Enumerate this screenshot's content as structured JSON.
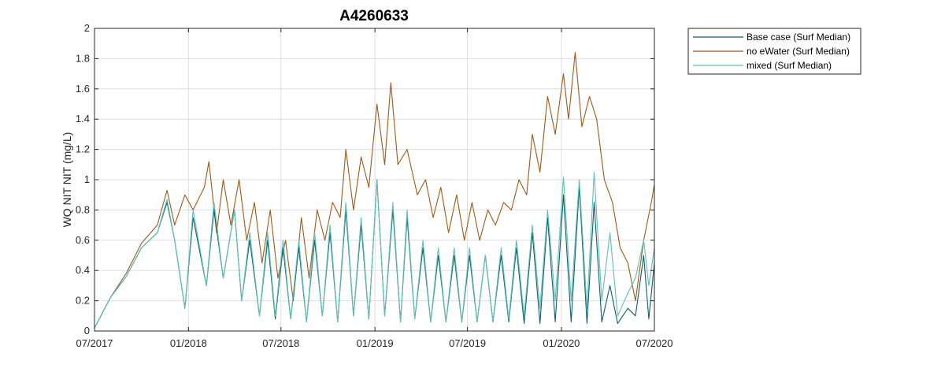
{
  "chart_data": {
    "type": "line",
    "title": "A4260633",
    "xlabel": "",
    "ylabel": "WQ NIT NIT (mg/L)",
    "ylim": [
      0,
      2
    ],
    "yticks": [
      "0",
      "0.2",
      "0.4",
      "0.6",
      "0.8",
      "1",
      "1.2",
      "1.4",
      "1.6",
      "1.8",
      "2"
    ],
    "xlim": [
      "2017-07-01",
      "2020-07-01"
    ],
    "xticks": [
      {
        "date": "2017-07-01",
        "label": "07/2017"
      },
      {
        "date": "2018-01-01",
        "label": "01/2018"
      },
      {
        "date": "2018-07-01",
        "label": "07/2018"
      },
      {
        "date": "2019-01-01",
        "label": "01/2019"
      },
      {
        "date": "2019-07-01",
        "label": "07/2019"
      },
      {
        "date": "2020-01-01",
        "label": "01/2020"
      },
      {
        "date": "2020-07-01",
        "label": "07/2020"
      }
    ],
    "grid": true,
    "legend_position": "outside-top-right",
    "series": [
      {
        "name": "Base case (Surf Median)",
        "color": "#0e5e6b",
        "points": [
          [
            "2017-07-01",
            0.02
          ],
          [
            "2017-08-01",
            0.22
          ],
          [
            "2017-09-01",
            0.36
          ],
          [
            "2017-10-01",
            0.55
          ],
          [
            "2017-11-01",
            0.65
          ],
          [
            "2017-11-20",
            0.85
          ],
          [
            "2017-12-05",
            0.6
          ],
          [
            "2017-12-25",
            0.15
          ],
          [
            "2018-01-10",
            0.75
          ],
          [
            "2018-02-05",
            0.3
          ],
          [
            "2018-02-20",
            0.8
          ],
          [
            "2018-03-10",
            0.35
          ],
          [
            "2018-04-01",
            0.8
          ],
          [
            "2018-04-15",
            0.2
          ],
          [
            "2018-05-01",
            0.6
          ],
          [
            "2018-05-20",
            0.1
          ],
          [
            "2018-06-05",
            0.6
          ],
          [
            "2018-06-20",
            0.08
          ],
          [
            "2018-07-05",
            0.55
          ],
          [
            "2018-07-20",
            0.08
          ],
          [
            "2018-08-05",
            0.55
          ],
          [
            "2018-08-20",
            0.06
          ],
          [
            "2018-09-05",
            0.6
          ],
          [
            "2018-09-20",
            0.1
          ],
          [
            "2018-10-05",
            0.65
          ],
          [
            "2018-10-20",
            0.06
          ],
          [
            "2018-11-05",
            0.8
          ],
          [
            "2018-11-20",
            0.1
          ],
          [
            "2018-12-05",
            0.7
          ],
          [
            "2018-12-20",
            0.08
          ],
          [
            "2019-01-05",
            1.0
          ],
          [
            "2019-01-20",
            0.1
          ],
          [
            "2019-02-05",
            0.8
          ],
          [
            "2019-02-20",
            0.06
          ],
          [
            "2019-03-05",
            0.75
          ],
          [
            "2019-03-20",
            0.08
          ],
          [
            "2019-04-05",
            0.55
          ],
          [
            "2019-04-20",
            0.06
          ],
          [
            "2019-05-05",
            0.5
          ],
          [
            "2019-05-20",
            0.06
          ],
          [
            "2019-06-05",
            0.5
          ],
          [
            "2019-06-20",
            0.06
          ],
          [
            "2019-07-05",
            0.5
          ],
          [
            "2019-07-20",
            0.06
          ],
          [
            "2019-08-05",
            0.5
          ],
          [
            "2019-08-20",
            0.06
          ],
          [
            "2019-09-05",
            0.5
          ],
          [
            "2019-09-20",
            0.06
          ],
          [
            "2019-10-05",
            0.55
          ],
          [
            "2019-10-20",
            0.05
          ],
          [
            "2019-11-05",
            0.65
          ],
          [
            "2019-11-20",
            0.05
          ],
          [
            "2019-12-05",
            0.75
          ],
          [
            "2019-12-20",
            0.06
          ],
          [
            "2020-01-05",
            0.9
          ],
          [
            "2020-01-20",
            0.06
          ],
          [
            "2020-02-05",
            0.95
          ],
          [
            "2020-02-20",
            0.05
          ],
          [
            "2020-03-05",
            0.85
          ],
          [
            "2020-03-20",
            0.06
          ],
          [
            "2020-04-05",
            0.3
          ],
          [
            "2020-04-20",
            0.05
          ],
          [
            "2020-05-10",
            0.15
          ],
          [
            "2020-05-25",
            0.1
          ],
          [
            "2020-06-10",
            0.5
          ],
          [
            "2020-06-20",
            0.08
          ],
          [
            "2020-07-01",
            0.45
          ]
        ]
      },
      {
        "name": "no eWater (Surf Median)",
        "color": "#9a5a1a",
        "points": [
          [
            "2017-07-01",
            0.02
          ],
          [
            "2017-08-01",
            0.22
          ],
          [
            "2017-09-01",
            0.38
          ],
          [
            "2017-10-01",
            0.58
          ],
          [
            "2017-11-01",
            0.7
          ],
          [
            "2017-11-20",
            0.93
          ],
          [
            "2017-12-05",
            0.7
          ],
          [
            "2017-12-25",
            0.9
          ],
          [
            "2018-01-10",
            0.8
          ],
          [
            "2018-02-01",
            0.95
          ],
          [
            "2018-02-10",
            1.12
          ],
          [
            "2018-02-25",
            0.65
          ],
          [
            "2018-03-10",
            1.0
          ],
          [
            "2018-03-25",
            0.7
          ],
          [
            "2018-04-10",
            1.0
          ],
          [
            "2018-04-25",
            0.6
          ],
          [
            "2018-05-10",
            0.85
          ],
          [
            "2018-05-25",
            0.45
          ],
          [
            "2018-06-10",
            0.8
          ],
          [
            "2018-06-25",
            0.35
          ],
          [
            "2018-07-10",
            0.6
          ],
          [
            "2018-07-25",
            0.2
          ],
          [
            "2018-08-10",
            0.75
          ],
          [
            "2018-08-25",
            0.35
          ],
          [
            "2018-09-10",
            0.8
          ],
          [
            "2018-09-25",
            0.6
          ],
          [
            "2018-10-10",
            0.85
          ],
          [
            "2018-10-25",
            0.75
          ],
          [
            "2018-11-05",
            1.2
          ],
          [
            "2018-11-20",
            0.8
          ],
          [
            "2018-12-05",
            1.15
          ],
          [
            "2018-12-20",
            0.95
          ],
          [
            "2019-01-05",
            1.5
          ],
          [
            "2019-01-20",
            1.1
          ],
          [
            "2019-02-01",
            1.64
          ],
          [
            "2019-02-15",
            1.1
          ],
          [
            "2019-03-05",
            1.2
          ],
          [
            "2019-03-25",
            0.9
          ],
          [
            "2019-04-10",
            1.0
          ],
          [
            "2019-04-25",
            0.75
          ],
          [
            "2019-05-10",
            0.95
          ],
          [
            "2019-05-25",
            0.65
          ],
          [
            "2019-06-10",
            0.9
          ],
          [
            "2019-06-25",
            0.6
          ],
          [
            "2019-07-10",
            0.85
          ],
          [
            "2019-07-25",
            0.6
          ],
          [
            "2019-08-10",
            0.8
          ],
          [
            "2019-08-25",
            0.7
          ],
          [
            "2019-09-10",
            0.85
          ],
          [
            "2019-09-25",
            0.8
          ],
          [
            "2019-10-10",
            1.0
          ],
          [
            "2019-10-25",
            0.9
          ],
          [
            "2019-11-05",
            1.3
          ],
          [
            "2019-11-20",
            1.05
          ],
          [
            "2019-12-05",
            1.55
          ],
          [
            "2019-12-20",
            1.3
          ],
          [
            "2020-01-05",
            1.7
          ],
          [
            "2020-01-15",
            1.4
          ],
          [
            "2020-01-28",
            1.84
          ],
          [
            "2020-02-10",
            1.35
          ],
          [
            "2020-02-25",
            1.55
          ],
          [
            "2020-03-10",
            1.4
          ],
          [
            "2020-03-25",
            1.0
          ],
          [
            "2020-04-10",
            0.85
          ],
          [
            "2020-04-25",
            0.55
          ],
          [
            "2020-05-10",
            0.45
          ],
          [
            "2020-05-25",
            0.2
          ],
          [
            "2020-06-10",
            0.6
          ],
          [
            "2020-06-25",
            0.85
          ],
          [
            "2020-07-01",
            0.97
          ]
        ]
      },
      {
        "name": "mixed (Surf Median)",
        "color": "#5fbfb9",
        "points": [
          [
            "2017-07-01",
            0.02
          ],
          [
            "2017-08-01",
            0.22
          ],
          [
            "2017-09-01",
            0.36
          ],
          [
            "2017-10-01",
            0.55
          ],
          [
            "2017-11-01",
            0.65
          ],
          [
            "2017-11-20",
            0.87
          ],
          [
            "2017-12-05",
            0.6
          ],
          [
            "2017-12-25",
            0.15
          ],
          [
            "2018-01-10",
            0.8
          ],
          [
            "2018-02-05",
            0.3
          ],
          [
            "2018-02-20",
            0.85
          ],
          [
            "2018-03-10",
            0.35
          ],
          [
            "2018-04-01",
            0.8
          ],
          [
            "2018-04-15",
            0.2
          ],
          [
            "2018-05-01",
            0.65
          ],
          [
            "2018-05-20",
            0.1
          ],
          [
            "2018-06-05",
            0.65
          ],
          [
            "2018-06-20",
            0.1
          ],
          [
            "2018-07-05",
            0.6
          ],
          [
            "2018-07-20",
            0.08
          ],
          [
            "2018-08-05",
            0.6
          ],
          [
            "2018-08-20",
            0.06
          ],
          [
            "2018-09-05",
            0.65
          ],
          [
            "2018-09-20",
            0.1
          ],
          [
            "2018-10-05",
            0.7
          ],
          [
            "2018-10-20",
            0.06
          ],
          [
            "2018-11-05",
            0.85
          ],
          [
            "2018-11-20",
            0.1
          ],
          [
            "2018-12-05",
            0.75
          ],
          [
            "2018-12-20",
            0.08
          ],
          [
            "2019-01-05",
            1.0
          ],
          [
            "2019-01-20",
            0.1
          ],
          [
            "2019-02-05",
            0.85
          ],
          [
            "2019-02-20",
            0.06
          ],
          [
            "2019-03-05",
            0.8
          ],
          [
            "2019-03-20",
            0.08
          ],
          [
            "2019-04-05",
            0.6
          ],
          [
            "2019-04-20",
            0.06
          ],
          [
            "2019-05-05",
            0.55
          ],
          [
            "2019-05-20",
            0.06
          ],
          [
            "2019-06-05",
            0.55
          ],
          [
            "2019-06-20",
            0.06
          ],
          [
            "2019-07-05",
            0.55
          ],
          [
            "2019-07-20",
            0.06
          ],
          [
            "2019-08-05",
            0.5
          ],
          [
            "2019-08-20",
            0.06
          ],
          [
            "2019-09-05",
            0.55
          ],
          [
            "2019-09-20",
            0.08
          ],
          [
            "2019-10-05",
            0.6
          ],
          [
            "2019-10-20",
            0.1
          ],
          [
            "2019-11-05",
            0.7
          ],
          [
            "2019-11-20",
            0.15
          ],
          [
            "2019-12-05",
            0.8
          ],
          [
            "2019-12-20",
            0.2
          ],
          [
            "2020-01-05",
            1.02
          ],
          [
            "2020-01-20",
            0.2
          ],
          [
            "2020-02-05",
            1.0
          ],
          [
            "2020-02-20",
            0.15
          ],
          [
            "2020-03-05",
            1.05
          ],
          [
            "2020-03-20",
            0.2
          ],
          [
            "2020-04-05",
            0.65
          ],
          [
            "2020-04-20",
            0.1
          ],
          [
            "2020-05-10",
            0.25
          ],
          [
            "2020-05-25",
            0.35
          ],
          [
            "2020-06-10",
            0.6
          ],
          [
            "2020-06-20",
            0.3
          ],
          [
            "2020-07-01",
            0.55
          ]
        ]
      }
    ]
  }
}
